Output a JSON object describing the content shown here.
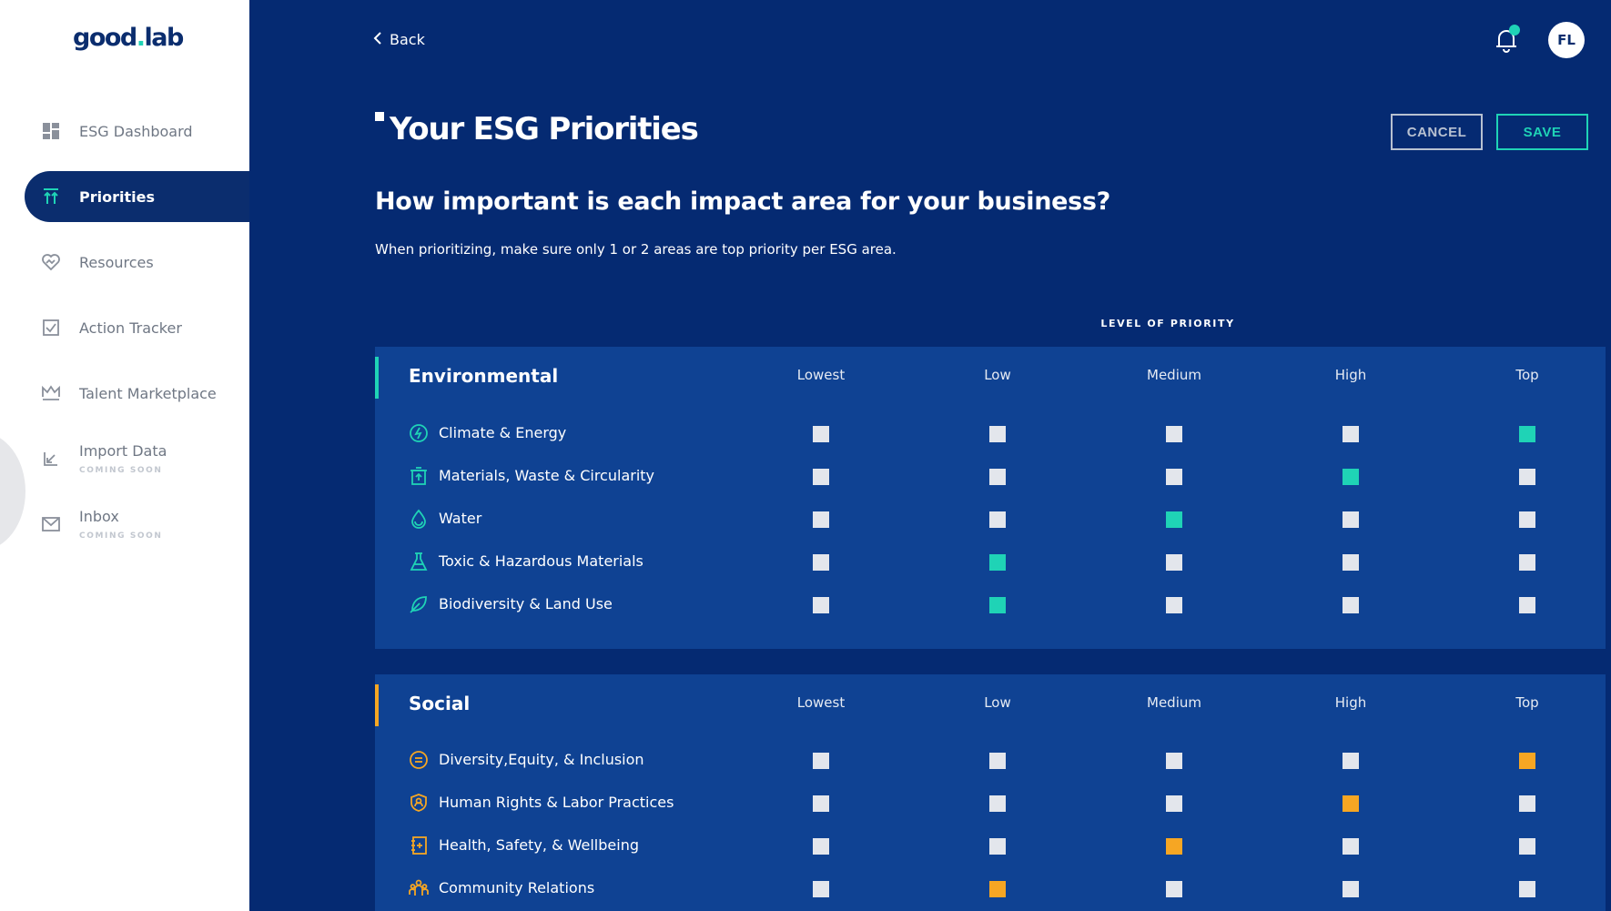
{
  "brand": {
    "logo_a": "good",
    "logo_dot": ".",
    "logo_b": "lab"
  },
  "sidebar": {
    "items": [
      {
        "label": "ESG Dashboard",
        "icon": "dashboard-icon"
      },
      {
        "label": "Priorities",
        "icon": "priorities-icon",
        "active": true
      },
      {
        "label": "Resources",
        "icon": "heart-hand-icon"
      },
      {
        "label": "Action Tracker",
        "icon": "checkbox-icon"
      },
      {
        "label": "Talent Marketplace",
        "icon": "crown-icon"
      },
      {
        "label": "Import Data",
        "icon": "chart-import-icon",
        "badge": "COMING SOON"
      },
      {
        "label": "Inbox",
        "icon": "mail-icon",
        "badge": "COMING SOON"
      }
    ]
  },
  "header": {
    "back_label": "Back",
    "avatar_initials": "FL"
  },
  "page": {
    "title": "Your ESG Priorities",
    "cancel_label": "CANCEL",
    "save_label": "SAVE",
    "question": "How important is each impact area for your business?",
    "hint": "When prioritizing, make sure only 1 or 2 areas are top priority per ESG area.",
    "level_label": "LEVEL OF PRIORITY"
  },
  "levels": [
    "Lowest",
    "Low",
    "Medium",
    "High",
    "Top"
  ],
  "sections": [
    {
      "title": "Environmental",
      "accent": "#1fd3b6",
      "rows": [
        {
          "label": "Climate & Energy",
          "icon": "lightning-icon",
          "selected": 4
        },
        {
          "label": "Materials, Waste & Circularity",
          "icon": "recycle-bin-icon",
          "selected": 3
        },
        {
          "label": "Water",
          "icon": "water-drop-icon",
          "selected": 2
        },
        {
          "label": "Toxic & Hazardous Materials",
          "icon": "flask-icon",
          "selected": 1
        },
        {
          "label": "Biodiversity & Land Use",
          "icon": "leaf-icon",
          "selected": 1
        }
      ]
    },
    {
      "title": "Social",
      "accent": "#f6a623",
      "rows": [
        {
          "label": "Diversity,Equity, & Inclusion",
          "icon": "equal-circle-icon",
          "selected": 4
        },
        {
          "label": "Human Rights & Labor Practices",
          "icon": "shield-person-icon",
          "selected": 3
        },
        {
          "label": "Health, Safety, & Wellbeing",
          "icon": "medical-book-icon",
          "selected": 2
        },
        {
          "label": "Community Relations",
          "icon": "people-group-icon",
          "selected": 1
        }
      ]
    }
  ]
}
